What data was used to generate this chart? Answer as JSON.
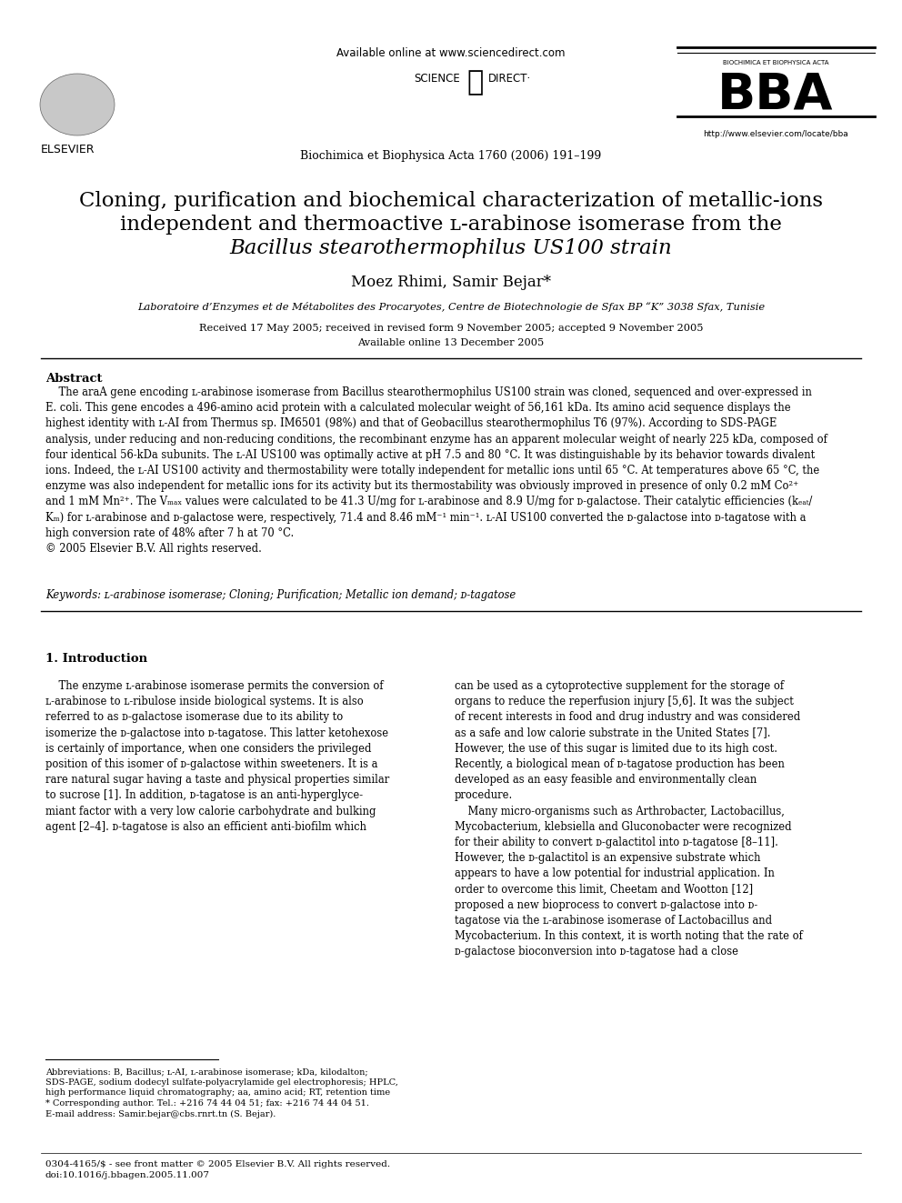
{
  "background_color": "#ffffff",
  "header": {
    "available_online": "Available online at www.sciencedirect.com",
    "journal_line": "Biochimica et Biophysica Acta 1760 (2006) 191–199",
    "bba_url": "http://www.elsevier.com/locate/bba",
    "bba_header": "BIOCHIMICA ET BIOPHYSICA ACTA",
    "bba_logo": "BBA"
  },
  "title_line1": "Cloning, purification and biochemical characterization of metallic-ions",
  "title_line2": "independent and thermoactive ʟ-arabinose isomerase from the",
  "title_line3": "Bacillus stearothermophilus US100 strain",
  "authors": "Moez Rhimi, Samir Bejar*",
  "affiliation": "Laboratoire d’Enzymes et de Métabolites des Procaryotes, Centre de Biotechnologie de Sfax BP “K” 3038 Sfax, Tunisie",
  "received": "Received 17 May 2005; received in revised form 9 November 2005; accepted 9 November 2005",
  "available": "Available online 13 December 2005",
  "abstract_title": "Abstract",
  "keywords": "Keywords: ʟ-arabinose isomerase; Cloning; Purification; Metallic ion demand; ᴅ-tagatose",
  "section1_title": "1. Introduction",
  "copyright_footer": "0304-4165/$ - see front matter © 2005 Elsevier B.V. All rights reserved.\ndoi:10.1016/j.bbagen.2005.11.007"
}
